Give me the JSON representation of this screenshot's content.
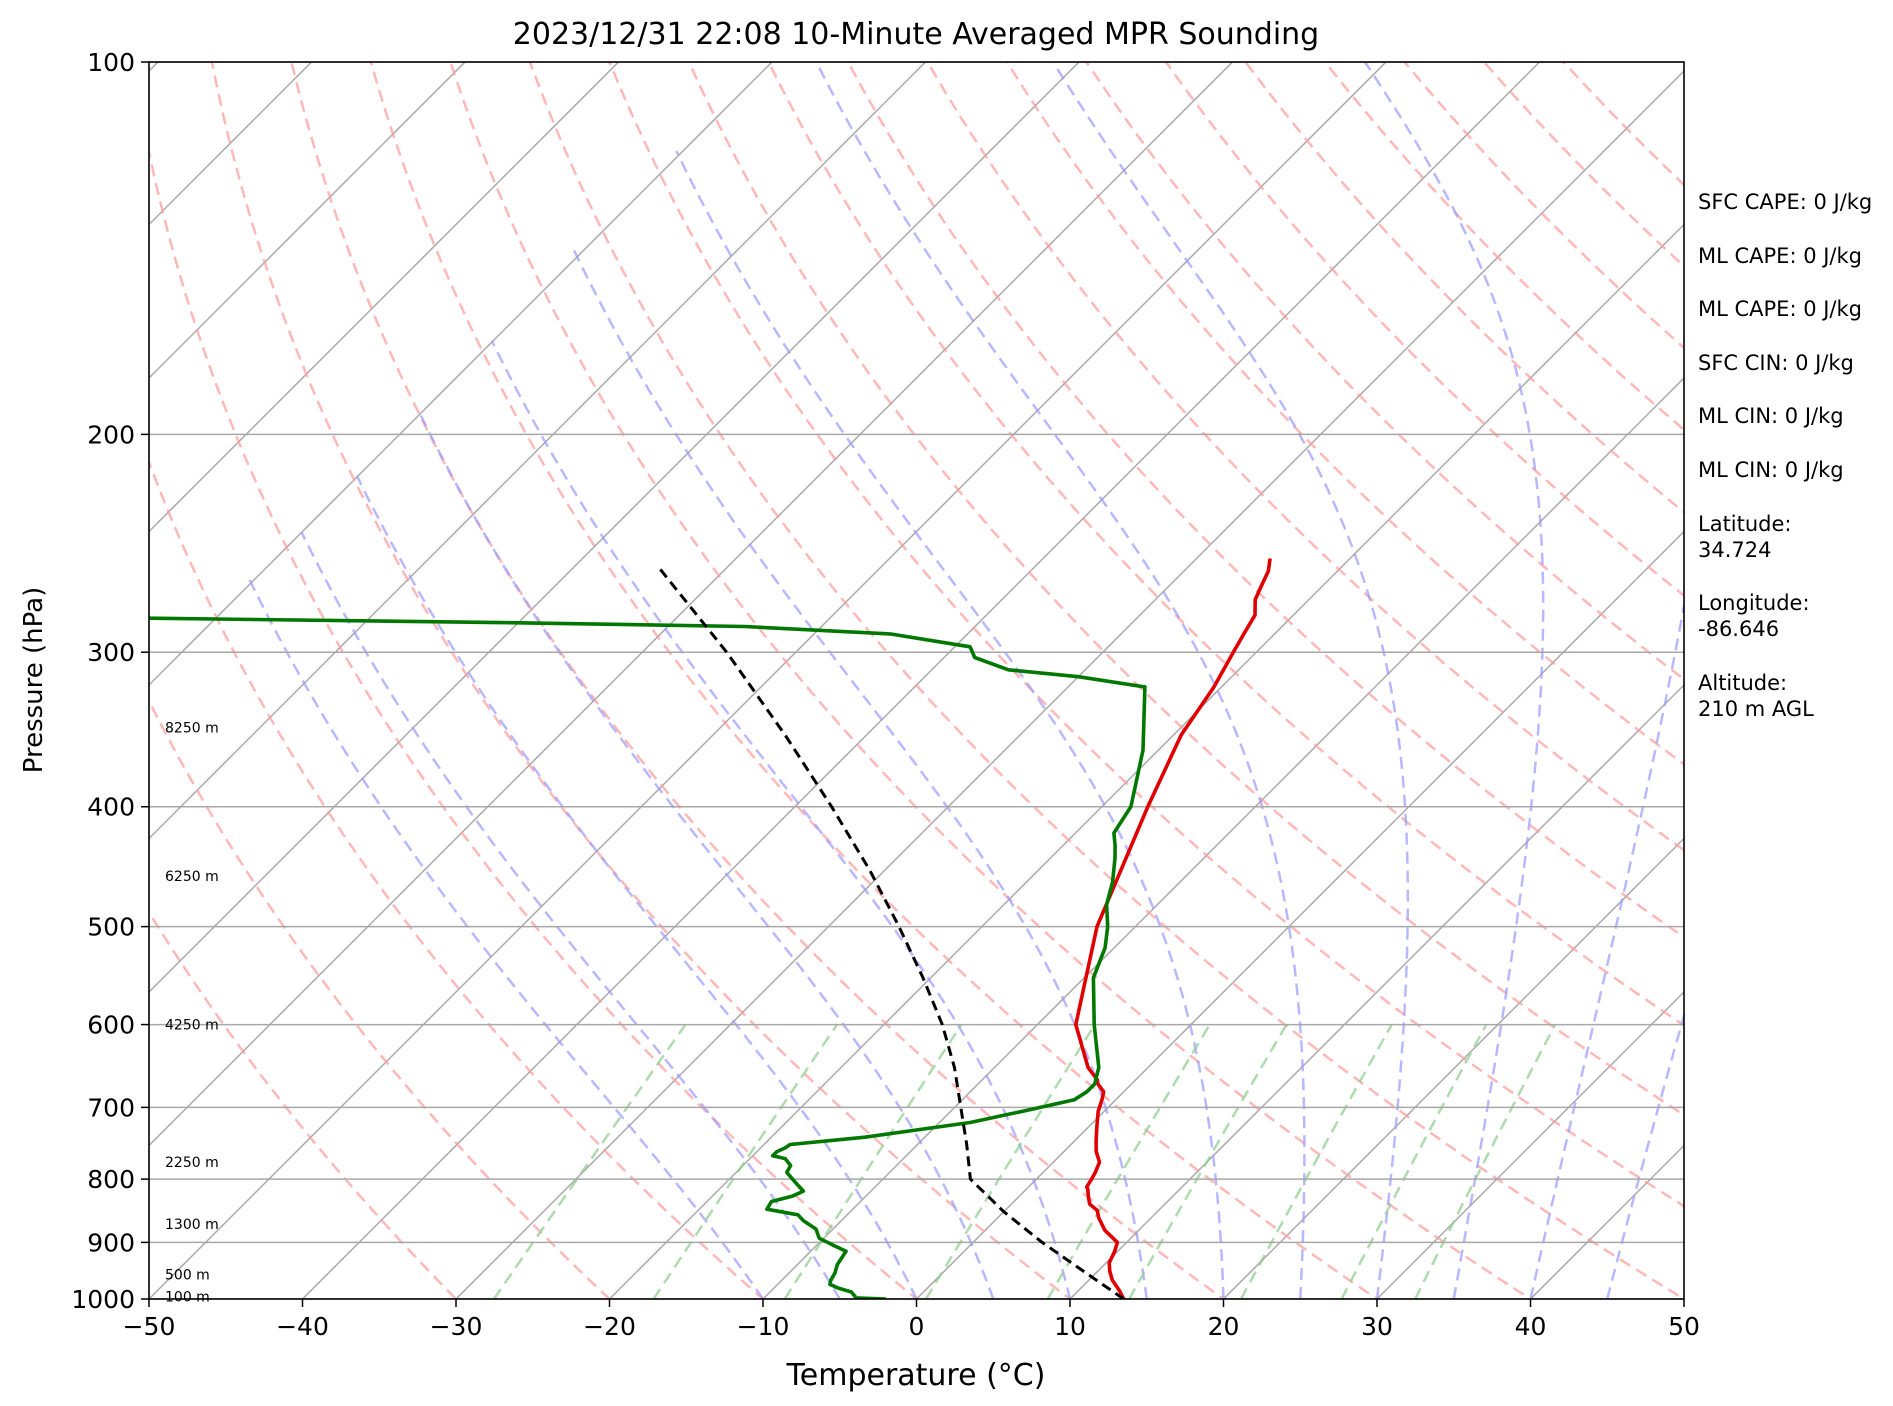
{
  "chart_data": {
    "type": "line",
    "subtype": "skew-T log-P sounding",
    "title": "2023/12/31 22:08 10-Minute Averaged MPR Sounding",
    "xlabel": "Temperature (°C)",
    "ylabel": "Pressure (hPa)",
    "xlim": [
      -50,
      50
    ],
    "ylim": [
      1000,
      100
    ],
    "y_scale": "log",
    "grid": true,
    "x_ticks": [
      -50,
      -40,
      -30,
      -20,
      -10,
      0,
      10,
      20,
      30,
      40,
      50
    ],
    "x_tick_labels": [
      "−50",
      "−40",
      "−30",
      "−20",
      "−10",
      "0",
      "10",
      "20",
      "30",
      "40",
      "50"
    ],
    "y_ticks": [
      1000,
      900,
      800,
      700,
      600,
      500,
      400,
      300,
      200,
      100
    ],
    "y_tick_labels": [
      "1000",
      "900",
      "800",
      "700",
      "600",
      "500",
      "400",
      "300",
      "200",
      "100"
    ],
    "isotherm_values": [
      -130,
      -120,
      -110,
      -100,
      -90,
      -80,
      -70,
      -60,
      -50,
      -40,
      -30,
      -20,
      -10,
      0,
      10,
      20,
      30,
      40,
      50
    ],
    "dry_adiabat_thetas_C": [
      -30,
      -20,
      -10,
      0,
      10,
      20,
      30,
      40,
      50,
      60,
      70,
      80,
      90,
      100,
      110,
      120,
      130,
      140,
      150,
      160,
      170,
      180
    ],
    "moist_adiabat_start_temps_C": [
      -10,
      -5,
      0,
      5,
      10,
      15,
      20,
      25,
      30,
      35,
      40,
      45
    ],
    "mixing_ratio_values_gkg": [
      0.4,
      1,
      2,
      4,
      7,
      10,
      16,
      24,
      32
    ],
    "series": [
      {
        "color": "#e00000",
        "points": [
          [
            1000,
            13.5
          ],
          [
            985,
            12.7
          ],
          [
            965,
            11.5
          ],
          [
            950,
            10.8
          ],
          [
            935,
            10.2
          ],
          [
            915,
            9.8
          ],
          [
            900,
            9.4
          ],
          [
            880,
            7.8
          ],
          [
            860,
            6.6
          ],
          [
            848,
            6.0
          ],
          [
            838,
            5.1
          ],
          [
            828,
            4.6
          ],
          [
            815,
            4.0
          ],
          [
            812,
            3.8
          ],
          [
            800,
            3.6
          ],
          [
            790,
            3.4
          ],
          [
            775,
            3.0
          ],
          [
            760,
            2.1
          ],
          [
            745,
            1.4
          ],
          [
            725,
            0.5
          ],
          [
            705,
            -0.4
          ],
          [
            690,
            -0.9
          ],
          [
            680,
            -1.3
          ],
          [
            670,
            -2.2
          ],
          [
            665,
            -2.5
          ],
          [
            650,
            -3.9
          ],
          [
            600,
            -7.5
          ],
          [
            500,
            -12.5
          ],
          [
            400,
            -17.0
          ],
          [
            350,
            -19.5
          ],
          [
            320,
            -20.5
          ],
          [
            300,
            -21.5
          ],
          [
            290,
            -22.0
          ],
          [
            280,
            -22.5
          ],
          [
            272,
            -23.5
          ],
          [
            265,
            -24.0
          ],
          [
            258,
            -24.5
          ],
          [
            252,
            -25.2
          ]
        ]
      },
      {
        "color": "#007800",
        "points": [
          [
            1000,
            -2.0
          ],
          [
            998,
            -4.0
          ],
          [
            987,
            -4.7
          ],
          [
            980,
            -5.8
          ],
          [
            973,
            -6.6
          ],
          [
            966,
            -6.8
          ],
          [
            953,
            -7.0
          ],
          [
            938,
            -7.4
          ],
          [
            915,
            -7.7
          ],
          [
            905,
            -8.9
          ],
          [
            893,
            -10.3
          ],
          [
            878,
            -11.1
          ],
          [
            864,
            -12.5
          ],
          [
            855,
            -13.2
          ],
          [
            846,
            -15.6
          ],
          [
            834,
            -15.8
          ],
          [
            826,
            -14.8
          ],
          [
            818,
            -14.4
          ],
          [
            806,
            -15.4
          ],
          [
            790,
            -16.7
          ],
          [
            780,
            -16.9
          ],
          [
            770,
            -17.7
          ],
          [
            766,
            -18.7
          ],
          [
            760,
            -18.7
          ],
          [
            755,
            -18.4
          ],
          [
            750,
            -18.3
          ],
          [
            740,
            -13.9
          ],
          [
            720,
            -8.0
          ],
          [
            705,
            -5.3
          ],
          [
            690,
            -2.7
          ],
          [
            680,
            -2.4
          ],
          [
            670,
            -2.4
          ],
          [
            660,
            -2.8
          ],
          [
            650,
            -3.2
          ],
          [
            600,
            -6.3
          ],
          [
            550,
            -9.4
          ],
          [
            520,
            -10.6
          ],
          [
            500,
            -11.8
          ],
          [
            480,
            -13.3
          ],
          [
            460,
            -14.4
          ],
          [
            440,
            -15.8
          ],
          [
            430,
            -16.6
          ],
          [
            420,
            -17.5
          ],
          [
            400,
            -18.1
          ],
          [
            360,
            -21.0
          ],
          [
            320,
            -25.0
          ],
          [
            314,
            -30.0
          ],
          [
            310,
            -35.0
          ],
          [
            303,
            -38.0
          ],
          [
            297,
            -39.0
          ],
          [
            290,
            -45.0
          ],
          [
            286,
            -55.0
          ],
          [
            284,
            -70.0
          ],
          [
            282,
            -90.0
          ],
          [
            280,
            -110.0
          ]
        ]
      },
      {
        "color": "#000000",
        "dashed": true,
        "points": [
          [
            1000,
            13.5
          ],
          [
            950,
            9.1
          ],
          [
            900,
            4.5
          ],
          [
            850,
            0.0
          ],
          [
            800,
            -4.3
          ],
          [
            750,
            -6.8
          ],
          [
            700,
            -9.6
          ],
          [
            650,
            -12.6
          ],
          [
            600,
            -16.2
          ],
          [
            550,
            -20.5
          ],
          [
            500,
            -25.4
          ],
          [
            450,
            -31.0
          ],
          [
            400,
            -37.6
          ],
          [
            350,
            -45.3
          ],
          [
            300,
            -54.5
          ],
          [
            256,
            -64.5
          ]
        ]
      }
    ],
    "height_labels": [
      {
        "text": "8250 m",
        "p": 345
      },
      {
        "text": "6250 m",
        "p": 455
      },
      {
        "text": "4250 m",
        "p": 600
      },
      {
        "text": "2250 m",
        "p": 775
      },
      {
        "text": "1300 m",
        "p": 870
      },
      {
        "text": "500 m",
        "p": 955
      },
      {
        "text": "100 m",
        "p": 995
      }
    ]
  },
  "stats": [
    "SFC CAPE: 0 J/kg",
    "ML CAPE: 0 J/kg",
    "ML CAPE: 0 J/kg",
    "SFC CIN: 0 J/kg",
    "ML CIN: 0 J/kg",
    "ML CIN: 0 J/kg",
    "Latitude:\n34.724",
    "Longitude:\n-86.646",
    "Altitude:\n210 m AGL"
  ]
}
